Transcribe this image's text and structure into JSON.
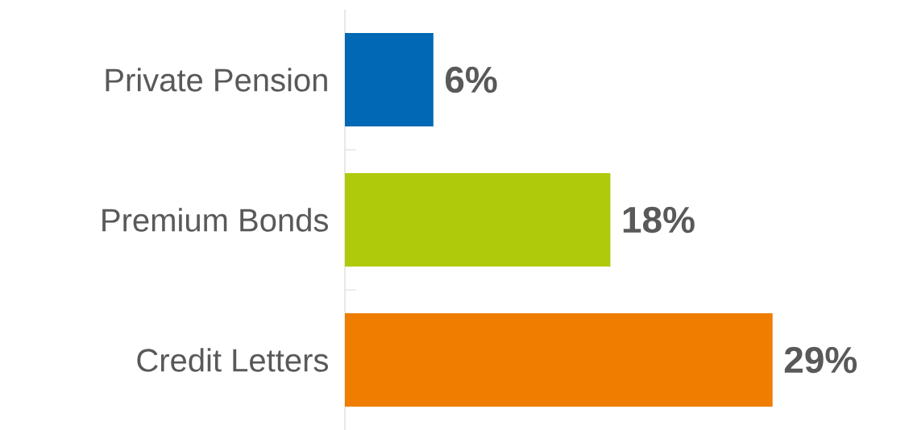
{
  "chart_data": {
    "type": "bar",
    "orientation": "horizontal",
    "categories": [
      "Private Pension",
      "Premium Bonds",
      "Credit Letters"
    ],
    "values": [
      6,
      18,
      29
    ],
    "colors": [
      "#0068b4",
      "#afca0b",
      "#ef7d00"
    ],
    "value_labels": [
      "6%",
      "18%",
      "29%"
    ]
  }
}
